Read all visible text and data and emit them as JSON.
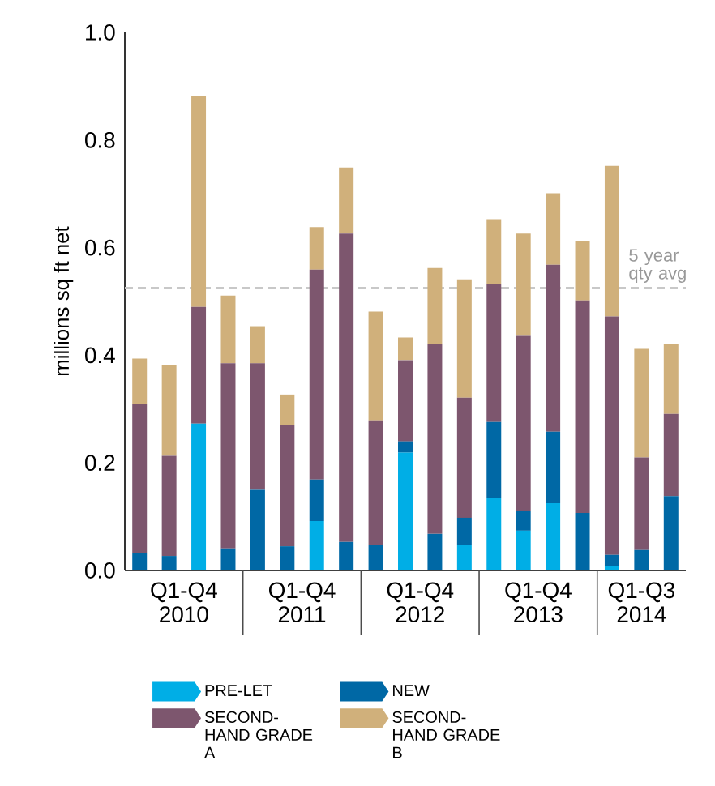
{
  "chart_data": {
    "type": "bar",
    "stacked": true,
    "ylabel": "millions sq ft net",
    "categories": [
      null,
      null,
      null,
      null,
      null,
      null,
      null,
      null,
      null,
      null,
      null,
      null,
      null,
      null,
      null,
      null,
      null,
      null,
      null
    ],
    "series": [
      {
        "name": "PRE-LET",
        "color": "#00aee6",
        "values": [
          0,
          0,
          0.273,
          0,
          0,
          0,
          0.092,
          0,
          0,
          0.219,
          0,
          0.047,
          0.135,
          0.074,
          0.125,
          0,
          0.008,
          0,
          0
        ]
      },
      {
        "name": "NEW",
        "color": "#0068a5",
        "values": [
          0.033,
          0.027,
          0,
          0.041,
          0.15,
          0.045,
          0.077,
          0.053,
          0.047,
          0.021,
          0.068,
          0.051,
          0.141,
          0.036,
          0.133,
          0.107,
          0.021,
          0.038,
          0.138
        ]
      },
      {
        "name": "SECOND-HAND GRADE A",
        "color": "#7d566e",
        "values": [
          0.276,
          0.186,
          0.217,
          0.344,
          0.235,
          0.225,
          0.39,
          0.573,
          0.232,
          0.151,
          0.353,
          0.223,
          0.256,
          0.326,
          0.31,
          0.395,
          0.443,
          0.172,
          0.153
        ]
      },
      {
        "name": "SECOND-HAND GRADE B",
        "color": "#d0b07b",
        "values": [
          0.085,
          0.169,
          0.392,
          0.126,
          0.069,
          0.057,
          0.079,
          0.123,
          0.202,
          0.042,
          0.141,
          0.22,
          0.121,
          0.19,
          0.133,
          0.111,
          0.28,
          0.202,
          0.13
        ]
      }
    ],
    "ylim": [
      0,
      1.0
    ],
    "yticks": [
      {
        "value": 0,
        "label": "0.0"
      },
      0.2,
      0.4,
      0.6,
      0.8,
      {
        "value": 1.0,
        "label": "1.0"
      }
    ],
    "ref_lines": [
      {
        "axis": "y",
        "value": 0.525,
        "label": "5 year qty avg",
        "color": "#c8c8c8",
        "line_style": "dashed"
      }
    ],
    "annotations": [
      "Q1-Q4 2010",
      "Q1-Q4 2011",
      "Q1-Q4 2012",
      "Q1-Q4 2013",
      "Q1-Q3 2014"
    ],
    "legend": "bottom",
    "grid": false
  }
}
